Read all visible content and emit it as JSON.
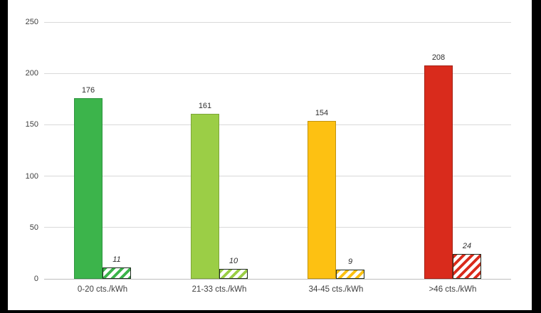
{
  "chart_data": {
    "type": "bar",
    "title": "",
    "categories": [
      "0-20 cts./kWh",
      "21-33 cts./kWh",
      "34-45 cts./kWh",
      ">46 cts./kWh"
    ],
    "series": [
      {
        "name": "solid",
        "style": "solid",
        "values": [
          176,
          161,
          154,
          208
        ],
        "value_label_style": "normal",
        "fill_colors": [
          "#3cb44b",
          "#9bce46",
          "#fdc112",
          "#d92b1c"
        ],
        "border_colors": [
          "#2f9540",
          "#7da638",
          "#c2940e",
          "#a32015"
        ]
      },
      {
        "name": "hatched",
        "style": "diagonal-hatch",
        "values": [
          11,
          10,
          9,
          24
        ],
        "value_label_style": "italic",
        "fill_colors": [
          "#3cb44b",
          "#9bce46",
          "#fdc112",
          "#d92b1c"
        ],
        "border_colors": [
          "#1f2a1f",
          "#1f2a1f",
          "#1f2a1f",
          "#1f2a1f"
        ]
      }
    ],
    "xlabel": "",
    "ylabel": "",
    "ylim": [
      0,
      250
    ],
    "yticks": [
      0,
      50,
      100,
      150,
      200,
      250
    ],
    "grid": true,
    "legend": false,
    "value_labels": true
  },
  "colors": {
    "frame": "#000000",
    "canvas": "#ffffff",
    "gridline": "#d9d9d9",
    "axis_line": "#bfbfbf",
    "text": "#404040"
  }
}
